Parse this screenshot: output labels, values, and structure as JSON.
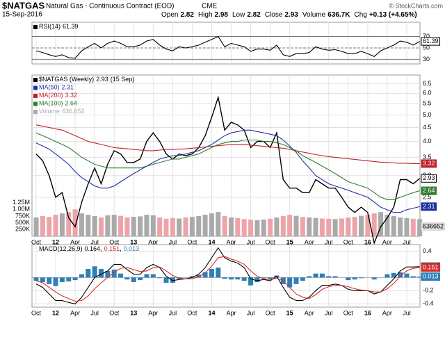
{
  "header": {
    "symbol": "$NATGAS",
    "name": "Natural Gas - Continuous Contract (EOD)",
    "exchange": "CME",
    "credit": "© StockCharts.com",
    "date": "15-Sep-2016",
    "quote": [
      [
        "Open",
        2.82
      ],
      [
        "High",
        2.98
      ],
      [
        "Low",
        2.82
      ],
      [
        "Close",
        2.93
      ],
      [
        "Volume",
        "636.7K"
      ],
      [
        "Chg",
        "+0.13 (+4.65%)"
      ]
    ]
  },
  "chart_data": [
    {
      "type": "line",
      "series": [
        {
          "name": "RSI(14)",
          "color": "#000000",
          "values": [
            45,
            42,
            38,
            35,
            38,
            33,
            32,
            45,
            52,
            58,
            50,
            58,
            62,
            58,
            52,
            52,
            55,
            62,
            65,
            55,
            48,
            45,
            52,
            50,
            52,
            55,
            60,
            65,
            70,
            52,
            58,
            55,
            52,
            44,
            48,
            48,
            46,
            55,
            38,
            35,
            40,
            40,
            42,
            52,
            48,
            46,
            47,
            44,
            40,
            40,
            44,
            40,
            35,
            45,
            50,
            55,
            62,
            60,
            55,
            61.39
          ]
        }
      ],
      "ylim": [
        22,
        95
      ],
      "yticks": [
        30,
        50,
        70
      ],
      "grid": true
    },
    {
      "type": "line",
      "log_scale": true,
      "grid": true,
      "x": [
        "2011-10",
        "2011-11",
        "2011-12",
        "2012-01",
        "2012-02",
        "2012-03",
        "2012-04",
        "2012-05",
        "2012-06",
        "2012-07",
        "2012-08",
        "2012-09",
        "2012-10",
        "2012-11",
        "2012-12",
        "2013-01",
        "2013-02",
        "2013-03",
        "2013-04",
        "2013-05",
        "2013-06",
        "2013-07",
        "2013-08",
        "2013-09",
        "2013-10",
        "2013-11",
        "2013-12",
        "2014-01",
        "2014-02",
        "2014-03",
        "2014-04",
        "2014-05",
        "2014-06",
        "2014-07",
        "2014-08",
        "2014-09",
        "2014-10",
        "2014-11",
        "2014-12",
        "2015-01",
        "2015-02",
        "2015-03",
        "2015-04",
        "2015-05",
        "2015-06",
        "2015-07",
        "2015-08",
        "2015-09",
        "2015-10",
        "2015-11",
        "2015-12",
        "2016-01",
        "2016-02",
        "2016-03",
        "2016-04",
        "2016-05",
        "2016-06",
        "2016-07",
        "2016-08",
        "2016-09"
      ],
      "xticks": [
        {
          "value": "2011-10",
          "label": "Oct"
        },
        {
          "value": "2012-01",
          "label": "12"
        },
        {
          "value": "2012-04",
          "label": "Apr"
        },
        {
          "value": "2012-07",
          "label": "Jul"
        },
        {
          "value": "2012-10",
          "label": "Oct"
        },
        {
          "value": "2013-01",
          "label": "13"
        },
        {
          "value": "2013-04",
          "label": "Apr"
        },
        {
          "value": "2013-07",
          "label": "Jul"
        },
        {
          "value": "2013-10",
          "label": "Oct"
        },
        {
          "value": "2014-01",
          "label": "14"
        },
        {
          "value": "2014-04",
          "label": "Apr"
        },
        {
          "value": "2014-07",
          "label": "Jul"
        },
        {
          "value": "2014-10",
          "label": "Oct"
        },
        {
          "value": "2015-01",
          "label": "15"
        },
        {
          "value": "2015-04",
          "label": "Apr"
        },
        {
          "value": "2015-07",
          "label": "Jul"
        },
        {
          "value": "2015-10",
          "label": "Oct"
        },
        {
          "value": "2016-01",
          "label": "16"
        },
        {
          "value": "2016-04",
          "label": "Apr"
        },
        {
          "value": "2016-07",
          "label": "Jul"
        }
      ],
      "ylim": [
        1.8,
        7
      ],
      "yticks": [
        {
          "value": 2.5,
          "label": "2.5"
        },
        {
          "value": 3,
          "label": "3.0"
        },
        3.5,
        {
          "value": 4,
          "label": "4.0"
        },
        4.5,
        {
          "value": 5,
          "label": "5.0"
        },
        5.5,
        {
          "value": 6,
          "label": "6.0"
        },
        6.5
      ],
      "y2lim": [
        0,
        1500000
      ],
      "y2ticks": [
        {
          "value": 250000,
          "label": "250K"
        },
        {
          "value": 500000,
          "label": "500K"
        },
        {
          "value": 750000,
          "label": "750K"
        },
        {
          "value": 1000000,
          "label": "1.00M"
        },
        {
          "value": 1250000,
          "label": "1.25M"
        }
      ],
      "series": [
        {
          "name": "$NATGAS (Weekly)",
          "date_label": "(15 Sep)",
          "color": "#000000",
          "values": [
            3.6,
            3.4,
            3.0,
            2.5,
            2.6,
            2.1,
            1.95,
            2.4,
            2.8,
            3.2,
            2.8,
            3.3,
            3.7,
            3.6,
            3.35,
            3.35,
            3.45,
            4.0,
            4.3,
            4.0,
            3.6,
            3.45,
            3.6,
            3.55,
            3.6,
            3.8,
            4.2,
            4.9,
            5.8,
            4.4,
            4.7,
            4.6,
            4.4,
            3.8,
            4.0,
            4.0,
            3.8,
            4.3,
            2.9,
            2.7,
            2.7,
            2.6,
            2.6,
            2.9,
            2.8,
            2.7,
            2.7,
            2.5,
            2.3,
            2.2,
            2.3,
            2.2,
            1.7,
            1.95,
            2.1,
            2.3,
            2.9,
            2.9,
            2.8,
            2.93
          ]
        },
        {
          "name": "MA(50)",
          "color": "#1f2fa0",
          "values": [
            3.95,
            3.85,
            3.75,
            3.6,
            3.45,
            3.3,
            3.1,
            2.95,
            2.85,
            2.75,
            2.7,
            2.7,
            2.75,
            2.85,
            2.95,
            3.05,
            3.15,
            3.25,
            3.35,
            3.45,
            3.5,
            3.55,
            3.55,
            3.6,
            3.65,
            3.7,
            3.8,
            3.9,
            4.05,
            4.2,
            4.3,
            4.35,
            4.4,
            4.4,
            4.35,
            4.3,
            4.25,
            4.2,
            4.05,
            3.85,
            3.65,
            3.4,
            3.2,
            3.0,
            2.9,
            2.8,
            2.75,
            2.7,
            2.65,
            2.6,
            2.55,
            2.5,
            2.4,
            2.3,
            2.25,
            2.2,
            2.2,
            2.25,
            2.28,
            2.31
          ]
        },
        {
          "name": "MA(200)",
          "color": "#c0202a",
          "values": [
            4.6,
            4.55,
            4.5,
            4.45,
            4.4,
            4.3,
            4.2,
            4.1,
            4.0,
            3.95,
            3.9,
            3.85,
            3.8,
            3.78,
            3.76,
            3.74,
            3.72,
            3.7,
            3.7,
            3.72,
            3.74,
            3.74,
            3.75,
            3.76,
            3.78,
            3.8,
            3.82,
            3.84,
            3.86,
            3.88,
            3.9,
            3.9,
            3.9,
            3.88,
            3.86,
            3.84,
            3.82,
            3.8,
            3.78,
            3.74,
            3.7,
            3.66,
            3.62,
            3.58,
            3.55,
            3.52,
            3.5,
            3.48,
            3.46,
            3.44,
            3.42,
            3.4,
            3.38,
            3.36,
            3.35,
            3.34,
            3.33,
            3.33,
            3.32,
            3.32
          ]
        },
        {
          "name": "MA(100)",
          "color": "#2e7d32",
          "values": [
            4.3,
            4.2,
            4.1,
            4.0,
            3.9,
            3.8,
            3.65,
            3.5,
            3.4,
            3.3,
            3.25,
            3.2,
            3.2,
            3.2,
            3.2,
            3.2,
            3.2,
            3.25,
            3.3,
            3.35,
            3.4,
            3.45,
            3.45,
            3.5,
            3.55,
            3.6,
            3.7,
            3.8,
            3.9,
            3.95,
            4.0,
            4.0,
            4.05,
            4.05,
            4.05,
            4.0,
            4.0,
            3.95,
            3.9,
            3.8,
            3.7,
            3.55,
            3.45,
            3.35,
            3.25,
            3.15,
            3.05,
            2.95,
            2.85,
            2.8,
            2.75,
            2.7,
            2.6,
            2.5,
            2.45,
            2.45,
            2.5,
            2.55,
            2.6,
            2.64
          ]
        },
        {
          "name": "Volume",
          "current_label": "636,652",
          "axis": "y2",
          "color": "#aaaaaa",
          "down_color": "#eca4a8",
          "values": [
            700000,
            750000,
            720000,
            800000,
            850000,
            900000,
            1000000,
            850000,
            800000,
            750000,
            700000,
            780000,
            800000,
            760000,
            700000,
            720000,
            740000,
            800000,
            780000,
            700000,
            650000,
            680000,
            660000,
            700000,
            720000,
            750000,
            800000,
            850000,
            900000,
            750000,
            700000,
            680000,
            640000,
            620000,
            600000,
            620000,
            650000,
            700000,
            750000,
            800000,
            760000,
            720000,
            700000,
            680000,
            660000,
            650000,
            640000,
            660000,
            700000,
            720000,
            760000,
            800000,
            850000,
            900000,
            800000,
            750000,
            700000,
            680000,
            650000,
            636652
          ]
        }
      ]
    },
    {
      "type": "line",
      "separator": ",",
      "ylim": [
        -0.45,
        0.5
      ],
      "yticks": [
        0.4,
        -0.2,
        -0.4
      ],
      "grid": true,
      "series": [
        {
          "name": "MACD(12,26,9)",
          "color": "#000000",
          "values": [
            -0.1,
            -0.15,
            -0.25,
            -0.35,
            -0.35,
            -0.38,
            -0.4,
            -0.3,
            -0.15,
            0.0,
            0.05,
            0.1,
            0.2,
            0.2,
            0.12,
            0.05,
            0.05,
            0.15,
            0.2,
            0.15,
            0.02,
            -0.05,
            -0.03,
            -0.02,
            0.0,
            0.05,
            0.15,
            0.3,
            0.45,
            0.3,
            0.25,
            0.22,
            0.15,
            -0.02,
            -0.05,
            -0.03,
            -0.05,
            0.02,
            -0.15,
            -0.3,
            -0.35,
            -0.35,
            -0.3,
            -0.2,
            -0.12,
            -0.12,
            -0.1,
            -0.12,
            -0.18,
            -0.2,
            -0.2,
            -0.2,
            -0.25,
            -0.22,
            -0.12,
            -0.02,
            0.1,
            0.16,
            0.16,
            0.164
          ]
        },
        {
          "color": "#d32f2f",
          "values": [
            -0.05,
            -0.08,
            -0.15,
            -0.22,
            -0.28,
            -0.32,
            -0.36,
            -0.35,
            -0.28,
            -0.17,
            -0.08,
            0.0,
            0.08,
            0.14,
            0.15,
            0.12,
            0.09,
            0.1,
            0.15,
            0.16,
            0.1,
            0.03,
            -0.01,
            -0.02,
            -0.02,
            0.01,
            0.07,
            0.17,
            0.3,
            0.32,
            0.28,
            0.25,
            0.2,
            0.1,
            0.02,
            -0.02,
            -0.03,
            -0.01,
            -0.05,
            -0.15,
            -0.25,
            -0.3,
            -0.32,
            -0.26,
            -0.18,
            -0.14,
            -0.12,
            -0.12,
            -0.14,
            -0.17,
            -0.19,
            -0.2,
            -0.22,
            -0.22,
            -0.17,
            -0.09,
            0.02,
            0.1,
            0.14,
            0.151
          ]
        },
        {
          "type": "bar",
          "color": "#2f7fb5",
          "values": [
            -0.05,
            -0.07,
            -0.1,
            -0.13,
            -0.07,
            -0.06,
            -0.04,
            0.05,
            0.13,
            0.17,
            0.13,
            0.1,
            0.12,
            0.06,
            -0.03,
            -0.07,
            -0.04,
            0.05,
            0.05,
            -0.01,
            -0.08,
            -0.08,
            -0.02,
            0,
            0.02,
            0.04,
            0.08,
            0.13,
            0.15,
            -0.02,
            -0.03,
            -0.03,
            -0.05,
            -0.12,
            -0.07,
            -0.01,
            -0.02,
            0.03,
            -0.1,
            -0.15,
            -0.1,
            -0.05,
            0.02,
            0.06,
            0.06,
            0.02,
            0.02,
            0,
            -0.04,
            -0.03,
            -0.01,
            0,
            -0.03,
            0,
            0.05,
            0.07,
            0.08,
            0.06,
            0.02,
            0.013
          ]
        }
      ]
    }
  ]
}
